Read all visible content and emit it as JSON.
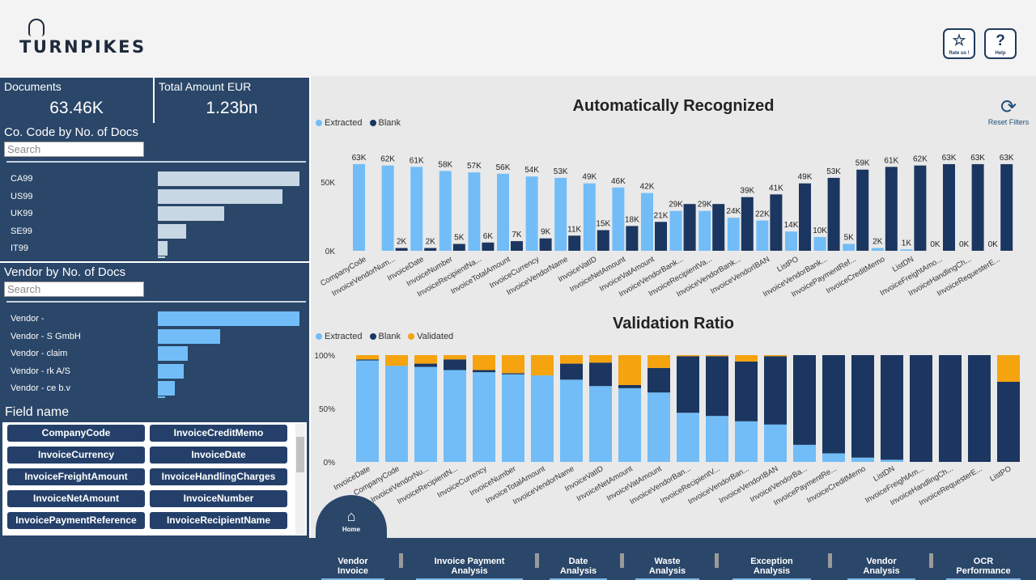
{
  "header": {
    "logo_text": "TURNPIKES",
    "rate_button": {
      "label": "Rate us !",
      "icon": "star-icon"
    },
    "help_button": {
      "label": "Help",
      "icon": "question-icon"
    }
  },
  "kpis": {
    "documents": {
      "title": "Documents",
      "value": "63.46K"
    },
    "total_amount": {
      "title": "Total Amount EUR",
      "value": "1.23bn"
    }
  },
  "company_panel": {
    "title": "Co. Code by No. of Docs",
    "search_placeholder": "Search",
    "bar_color": "#c8d7e4",
    "rows": [
      {
        "label": "CA99",
        "value": 100
      },
      {
        "label": "US99",
        "value": 88
      },
      {
        "label": "UK99",
        "value": 47
      },
      {
        "label": "SE99",
        "value": 20
      },
      {
        "label": "IT99",
        "value": 7
      }
    ]
  },
  "vendor_panel": {
    "title": "Vendor by No. of Docs",
    "search_placeholder": "Search",
    "bar_color": "#72bdf7",
    "rows": [
      {
        "label": "Vendor -",
        "value": 100
      },
      {
        "label": "Vendor - S GmbH",
        "value": 44
      },
      {
        "label": "Vendor - claim",
        "value": 21
      },
      {
        "label": "Vendor - rk A/S",
        "value": 18
      },
      {
        "label": "Vendor - ce b.v",
        "value": 12
      }
    ]
  },
  "field_panel": {
    "title": "Field name",
    "chips": [
      "CompanyCode",
      "InvoiceCreditMemo",
      "InvoiceCurrency",
      "InvoiceDate",
      "InvoiceFreightAmount",
      "InvoiceHandlingCharges",
      "InvoiceNetAmount",
      "InvoiceNumber",
      "InvoicePaymentReference",
      "InvoiceRecipientName"
    ]
  },
  "reset_filters": {
    "label": "Reset Filters",
    "icon": "refresh-icon"
  },
  "colors": {
    "extracted": "#72bdf7",
    "blank": "#1b3660",
    "validated": "#f5a30f"
  },
  "chart_data": [
    {
      "type": "bar",
      "title": "Automatically Recognized",
      "legend": [
        "Extracted",
        "Blank"
      ],
      "ylim": [
        0,
        70000
      ],
      "ytick_values": [
        0,
        50000
      ],
      "ytick_labels": [
        "0K",
        "50K"
      ],
      "categories": [
        "CompanyCode",
        "InvoiceVendorNum...",
        "InvoiceDate",
        "InvoiceNumber",
        "InvoiceRecipientNa...",
        "InvoiceTotalAmount",
        "InvoiceCurrency",
        "InvoiceVendorName",
        "InvoiceVatID",
        "InvoiceNetAmount",
        "InvoiceVatAmount",
        "InvoiceVendorBank...",
        "InvoiceRecipientVa...",
        "InvoiceVendorBank...",
        "InvoiceVendorIBAN",
        "ListPO",
        "InvoiceVendorBank...",
        "InvoicePaymentRef...",
        "InvoiceCreditMemo",
        "ListDN",
        "InvoiceFreightAmo...",
        "InvoiceHandlingCh...",
        "InvoiceRequesterE..."
      ],
      "series": [
        {
          "name": "Extracted",
          "values": [
            63000,
            62000,
            61000,
            58000,
            57000,
            56000,
            54000,
            53000,
            49000,
            46000,
            42000,
            29000,
            29000,
            24000,
            22000,
            14000,
            10000,
            5000,
            2000,
            1000,
            0,
            0,
            0
          ],
          "labels": [
            "63K",
            "62K",
            "61K",
            "58K",
            "57K",
            "56K",
            "54K",
            "53K",
            "49K",
            "46K",
            "42K",
            "29K",
            "29K",
            "24K",
            "22K",
            "14K",
            "10K",
            "5K",
            "2K",
            "1K",
            "0K",
            "0K",
            "0K"
          ]
        },
        {
          "name": "Blank",
          "values": [
            0,
            2000,
            2000,
            5000,
            6000,
            7000,
            9000,
            11000,
            15000,
            18000,
            21000,
            34000,
            34000,
            39000,
            41000,
            49000,
            53000,
            59000,
            61000,
            62000,
            63000,
            63000,
            63000
          ],
          "labels": [
            "",
            "2K",
            "2K",
            "5K",
            "6K",
            "7K",
            "9K",
            "11K",
            "15K",
            "18K",
            "21K",
            "",
            "",
            "39K",
            "41K",
            "49K",
            "53K",
            "59K",
            "61K",
            "62K",
            "63K",
            "63K",
            "63K"
          ]
        }
      ]
    },
    {
      "type": "bar",
      "stacked": "percent",
      "title": "Validation Ratio",
      "legend": [
        "Extracted",
        "Blank",
        "Validated"
      ],
      "ylim": [
        0,
        100
      ],
      "ytick_values": [
        0,
        50,
        100
      ],
      "ytick_labels": [
        "0%",
        "50%",
        "100%"
      ],
      "categories": [
        "InvoiceDate",
        "CompanyCode",
        "InvoiceVendorNu...",
        "InvoiceRecipientN...",
        "InvoiceCurrency",
        "InvoiceNumber",
        "InvoiceTotalAmount",
        "InvoiceVendorName",
        "InvoiceVatID",
        "InvoiceNetAmount",
        "InvoiceVatAmount",
        "InvoiceVendorBan...",
        "InvoiceRecipientV...",
        "InvoiceVendorBan...",
        "InvoiceVendorIBAN",
        "InvoiceVendorBa...",
        "InvoicePaymentRe...",
        "InvoiceCreditMemo",
        "ListDN",
        "InvoiceFreightAm...",
        "InvoiceHandlingCh...",
        "InvoiceRequesterE...",
        "ListPO"
      ],
      "series": [
        {
          "name": "Extracted",
          "values": [
            95,
            90,
            89,
            86,
            84,
            82,
            81,
            77,
            71,
            69,
            65,
            46,
            43,
            38,
            35,
            16,
            8,
            4,
            2,
            0,
            0,
            0,
            0
          ]
        },
        {
          "name": "Blank",
          "values": [
            1,
            0,
            3,
            10,
            2,
            1,
            0,
            15,
            22,
            3,
            23,
            53,
            56,
            56,
            64,
            84,
            92,
            96,
            98,
            100,
            100,
            100,
            75
          ]
        },
        {
          "name": "Validated",
          "values": [
            4,
            10,
            8,
            4,
            14,
            17,
            19,
            8,
            7,
            28,
            12,
            1,
            1,
            6,
            1,
            0,
            0,
            0,
            0,
            0,
            0,
            0,
            25
          ]
        }
      ]
    }
  ],
  "home_button": {
    "label": "Home",
    "icon": "home-icon"
  },
  "nav_tabs": [
    "Vendor Invoice",
    "Invoice Payment Analysis",
    "Date Analysis",
    "Waste Analysis",
    "Exception Analysis",
    "Vendor Analysis",
    "OCR Performance"
  ]
}
